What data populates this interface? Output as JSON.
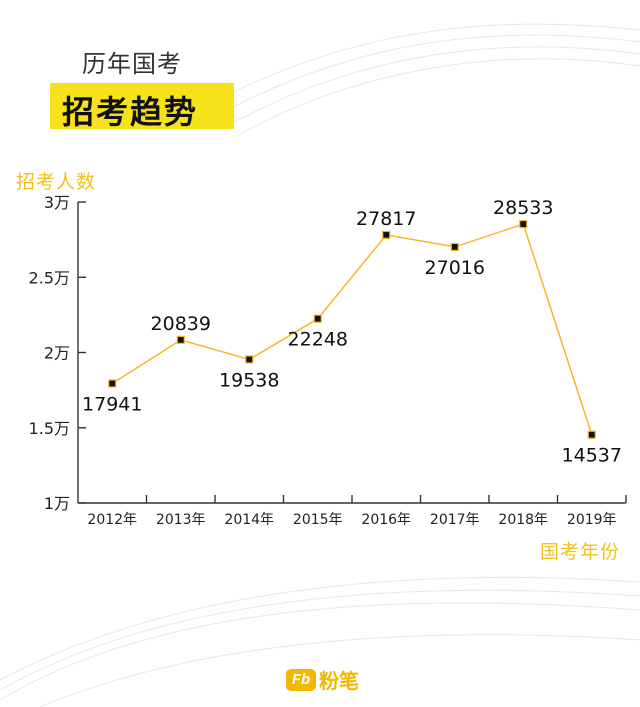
{
  "header": {
    "subtitle": "历年国考",
    "title": "招考趋势"
  },
  "colors": {
    "accent": "#f6e21a",
    "label": "#f2c21a",
    "line": "#f6b62a",
    "marker": "#111111",
    "axis": "#333333"
  },
  "chart_data": {
    "type": "line",
    "title": "",
    "ylabel": "招考人数",
    "xlabel": "国考年份",
    "categories": [
      "2012年",
      "2013年",
      "2014年",
      "2015年",
      "2016年",
      "2017年",
      "2018年",
      "2019年"
    ],
    "series": [
      {
        "values": [
          17941,
          20839,
          19538,
          22248,
          27817,
          27016,
          28533,
          14537
        ]
      }
    ],
    "data_labels": [
      "17941",
      "20839",
      "19538",
      "22248",
      "27817",
      "27016",
      "28533",
      "14537"
    ],
    "label_positions": [
      "below",
      "above",
      "below",
      "below",
      "above",
      "below",
      "above",
      "below"
    ],
    "yticks": [
      {
        "value": 10000,
        "label": "1万"
      },
      {
        "value": 15000,
        "label": "1.5万"
      },
      {
        "value": 20000,
        "label": "2万"
      },
      {
        "value": 25000,
        "label": "2.5万"
      },
      {
        "value": 30000,
        "label": "3万"
      }
    ],
    "ylim": [
      10000,
      30000
    ],
    "grid": false,
    "legend": "none"
  },
  "logo": {
    "mark": "Fb",
    "text": "粉笔"
  }
}
